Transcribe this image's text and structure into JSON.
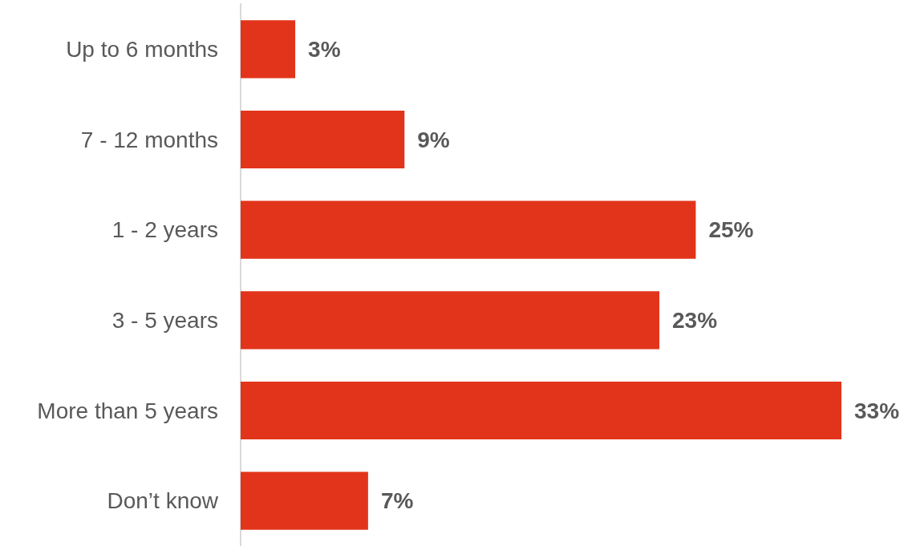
{
  "chart_data": {
    "type": "bar",
    "orientation": "horizontal",
    "categories": [
      "Up to 6 months",
      "7 - 12 months",
      "1 - 2 years",
      "3 - 5 years",
      "More than 5 years",
      "Don’t know"
    ],
    "values": [
      3,
      9,
      25,
      23,
      33,
      7
    ],
    "value_labels": [
      "3%",
      "9%",
      "25%",
      "23%",
      "33%",
      "7%"
    ],
    "color": "#e2341a"
  }
}
